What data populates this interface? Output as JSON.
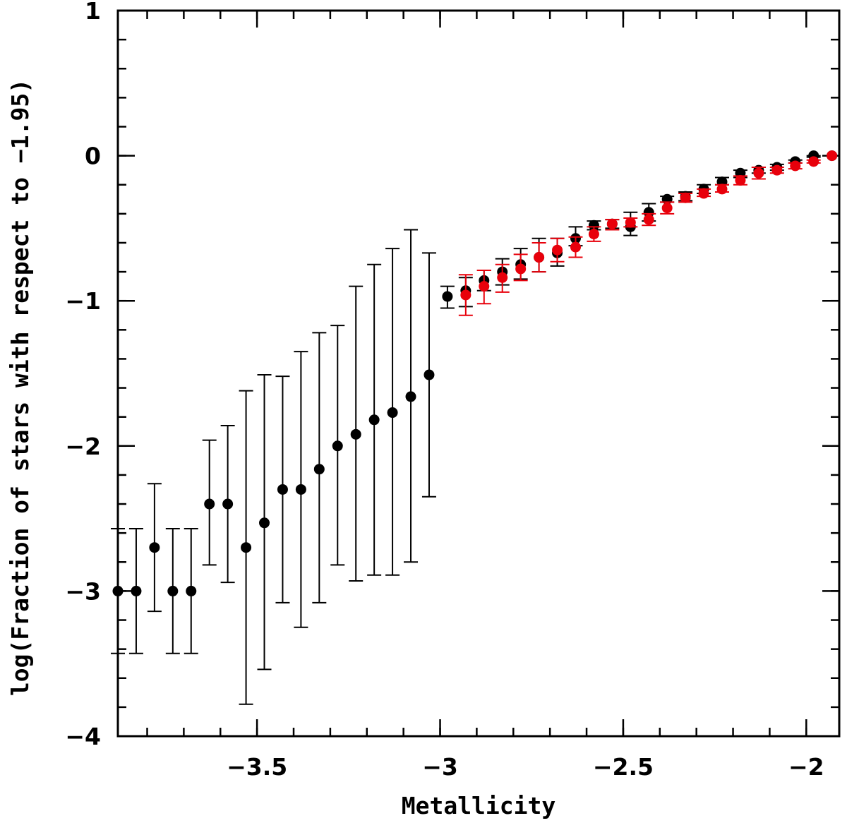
{
  "chart_data": {
    "type": "scatter",
    "xlabel": "Metallicity",
    "ylabel": "log(Fraction of stars with respect to −1.95)",
    "xlim": [
      -3.88,
      -1.91
    ],
    "ylim": [
      -4,
      1
    ],
    "x_ticks": [
      -3.5,
      -3,
      -2.5,
      -2
    ],
    "x_tick_labels": [
      "−3.5",
      "−3",
      "−2.5",
      "−2"
    ],
    "y_ticks": [
      -4,
      -3,
      -2,
      -1,
      0,
      1
    ],
    "y_tick_labels": [
      "−4",
      "−3",
      "−2",
      "−1",
      "0",
      "1"
    ],
    "grid": false,
    "legend": "none",
    "series": [
      {
        "color": "#000000",
        "x": [
          -3.88,
          -3.83,
          -3.78,
          -3.73,
          -3.68,
          -3.63,
          -3.58,
          -3.53,
          -3.48,
          -3.43,
          -3.38,
          -3.33,
          -3.28,
          -3.23,
          -3.18,
          -3.13,
          -3.08,
          -3.03,
          -2.98,
          -2.93,
          -2.88,
          -2.83,
          -2.78,
          -2.73,
          -2.68,
          -2.63,
          -2.58,
          -2.53,
          -2.48,
          -2.43,
          -2.38,
          -2.33,
          -2.28,
          -2.23,
          -2.18,
          -2.13,
          -2.08,
          -2.03,
          -1.98,
          -1.93
        ],
        "y": [
          -3.0,
          -3.0,
          -2.7,
          -3.0,
          -3.0,
          -2.4,
          -2.4,
          -2.7,
          -2.53,
          -2.3,
          -2.3,
          -2.16,
          -2.0,
          -1.92,
          -1.82,
          -1.77,
          -1.66,
          -1.51,
          -0.97,
          -0.93,
          -0.86,
          -0.8,
          -0.75,
          -0.7,
          -0.67,
          -0.57,
          -0.48,
          -0.47,
          -0.49,
          -0.39,
          -0.3,
          -0.28,
          -0.23,
          -0.18,
          -0.12,
          -0.1,
          -0.08,
          -0.04,
          0.0,
          0.0
        ],
        "err_low": [
          -3.43,
          -3.43,
          -3.14,
          -3.43,
          -3.43,
          -2.82,
          -2.94,
          -3.78,
          -3.54,
          -3.08,
          -3.25,
          -3.08,
          -2.82,
          -2.93,
          -2.89,
          -2.89,
          -2.8,
          -2.35,
          -1.05,
          -1.04,
          -0.93,
          -0.89,
          -0.85,
          -0.8,
          -0.76,
          -0.62,
          -0.51,
          -0.5,
          -0.55,
          -0.45,
          -0.32,
          -0.31,
          -0.26,
          -0.2,
          -0.15,
          -0.12,
          -0.1,
          -0.05,
          -0.01,
          0.0
        ],
        "err_high": [
          -2.57,
          -2.57,
          -2.26,
          -2.57,
          -2.57,
          -1.96,
          -1.86,
          -1.62,
          -1.51,
          -1.52,
          -1.35,
          -1.22,
          -1.17,
          -0.9,
          -0.75,
          -0.64,
          -0.51,
          -0.67,
          -0.9,
          -0.84,
          -0.79,
          -0.71,
          -0.64,
          -0.57,
          -0.57,
          -0.49,
          -0.45,
          -0.44,
          -0.39,
          -0.33,
          -0.28,
          -0.25,
          -0.2,
          -0.15,
          -0.1,
          -0.08,
          -0.06,
          -0.03,
          0.0,
          0.0
        ]
      },
      {
        "color": "#e8000b",
        "x": [
          -2.93,
          -2.88,
          -2.83,
          -2.78,
          -2.73,
          -2.68,
          -2.63,
          -2.58,
          -2.53,
          -2.48,
          -2.43,
          -2.38,
          -2.33,
          -2.28,
          -2.23,
          -2.18,
          -2.13,
          -2.08,
          -2.03,
          -1.98,
          -1.93
        ],
        "y": [
          -0.96,
          -0.9,
          -0.84,
          -0.78,
          -0.7,
          -0.65,
          -0.63,
          -0.54,
          -0.47,
          -0.46,
          -0.44,
          -0.36,
          -0.29,
          -0.26,
          -0.23,
          -0.17,
          -0.12,
          -0.1,
          -0.07,
          -0.04,
          0.0
        ],
        "err_low": [
          -1.1,
          -1.02,
          -0.94,
          -0.86,
          -0.8,
          -0.73,
          -0.7,
          -0.59,
          -0.51,
          -0.49,
          -0.48,
          -0.4,
          -0.32,
          -0.28,
          -0.25,
          -0.2,
          -0.16,
          -0.12,
          -0.09,
          -0.05,
          0.0
        ],
        "err_high": [
          -0.82,
          -0.79,
          -0.75,
          -0.68,
          -0.6,
          -0.57,
          -0.56,
          -0.49,
          -0.44,
          -0.43,
          -0.4,
          -0.32,
          -0.26,
          -0.23,
          -0.2,
          -0.14,
          -0.08,
          -0.08,
          -0.05,
          -0.03,
          0.0
        ]
      }
    ]
  }
}
